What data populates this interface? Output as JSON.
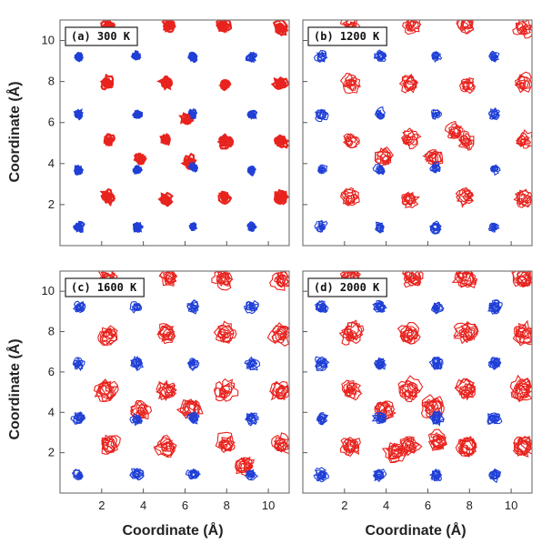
{
  "figure": {
    "ylabel": "Coordinate (Å)",
    "xlabel": "Coordinate (Å)"
  },
  "chart_data": [
    {
      "type": "scatter",
      "panel_label": "(a) 300 K",
      "temperature_K": 300,
      "xlim": [
        0,
        11
      ],
      "ylim": [
        0,
        11
      ],
      "xticks": [
        2,
        4,
        6,
        8,
        10
      ],
      "yticks": [
        2,
        4,
        6,
        8,
        10
      ],
      "show_x_tick_labels": false,
      "show_y_tick_labels": true,
      "spread": 0.12,
      "colors": {
        "red_species": "#e8231e",
        "blue_species": "#1f3fd6"
      },
      "series": [
        {
          "color_key": "red_species",
          "points": [
            [
              2.3,
              10.7
            ],
            [
              5.2,
              10.7
            ],
            [
              7.8,
              10.7
            ],
            [
              10.6,
              10.6
            ],
            [
              2.3,
              7.9
            ],
            [
              5.1,
              7.9
            ],
            [
              7.9,
              7.9
            ],
            [
              10.6,
              7.9
            ],
            [
              2.3,
              5.1
            ],
            [
              5.1,
              5.2
            ],
            [
              7.9,
              5.1
            ],
            [
              10.6,
              5.1
            ],
            [
              3.9,
              4.2
            ],
            [
              6.2,
              4.1
            ],
            [
              6.1,
              6.1
            ],
            [
              2.3,
              2.4
            ],
            [
              5.1,
              2.2
            ],
            [
              7.9,
              2.4
            ],
            [
              10.6,
              2.4
            ]
          ]
        },
        {
          "color_key": "blue_species",
          "points": [
            [
              0.9,
              9.2
            ],
            [
              3.7,
              9.2
            ],
            [
              6.4,
              9.2
            ],
            [
              9.2,
              9.2
            ],
            [
              0.9,
              6.4
            ],
            [
              3.7,
              6.4
            ],
            [
              6.4,
              6.4
            ],
            [
              9.2,
              6.4
            ],
            [
              0.9,
              3.7
            ],
            [
              3.7,
              3.7
            ],
            [
              6.4,
              3.8
            ],
            [
              9.2,
              3.7
            ],
            [
              0.9,
              0.9
            ],
            [
              3.7,
              0.9
            ],
            [
              6.4,
              0.9
            ],
            [
              9.2,
              0.9
            ]
          ]
        }
      ]
    },
    {
      "type": "scatter",
      "panel_label": "(b) 1200 K",
      "temperature_K": 1200,
      "xlim": [
        0,
        11
      ],
      "ylim": [
        0,
        11
      ],
      "xticks": [
        2,
        4,
        6,
        8,
        10
      ],
      "yticks": [
        2,
        4,
        6,
        8,
        10
      ],
      "show_x_tick_labels": false,
      "show_y_tick_labels": false,
      "spread": 0.3,
      "colors": {
        "red_species": "#e8231e",
        "blue_species": "#1f3fd6"
      },
      "series": [
        {
          "color_key": "red_species",
          "points": [
            [
              2.3,
              10.7
            ],
            [
              5.2,
              10.7
            ],
            [
              7.8,
              10.7
            ],
            [
              10.6,
              10.6
            ],
            [
              2.3,
              7.9
            ],
            [
              5.1,
              7.9
            ],
            [
              7.9,
              7.9
            ],
            [
              10.6,
              7.9
            ],
            [
              2.3,
              5.1
            ],
            [
              5.1,
              5.2
            ],
            [
              7.9,
              5.1
            ],
            [
              10.6,
              5.1
            ],
            [
              3.9,
              4.3
            ],
            [
              6.3,
              4.3
            ],
            [
              7.3,
              5.5
            ],
            [
              2.3,
              2.4
            ],
            [
              5.1,
              2.3
            ],
            [
              7.9,
              2.4
            ],
            [
              10.6,
              2.3
            ]
          ]
        },
        {
          "color_key": "blue_species",
          "points": [
            [
              0.9,
              9.2
            ],
            [
              3.7,
              9.2
            ],
            [
              6.4,
              9.2
            ],
            [
              9.2,
              9.2
            ],
            [
              0.9,
              6.4
            ],
            [
              3.7,
              6.4
            ],
            [
              6.4,
              6.4
            ],
            [
              9.2,
              6.4
            ],
            [
              0.9,
              3.7
            ],
            [
              3.7,
              3.7
            ],
            [
              6.4,
              3.8
            ],
            [
              9.2,
              3.7
            ],
            [
              0.9,
              0.9
            ],
            [
              3.7,
              0.9
            ],
            [
              6.4,
              0.9
            ],
            [
              9.2,
              0.9
            ]
          ]
        }
      ]
    },
    {
      "type": "scatter",
      "panel_label": "(c) 1600 K",
      "temperature_K": 1600,
      "xlim": [
        0,
        11
      ],
      "ylim": [
        0,
        11
      ],
      "xticks": [
        2,
        4,
        6,
        8,
        10
      ],
      "yticks": [
        2,
        4,
        6,
        8,
        10
      ],
      "show_x_tick_labels": true,
      "show_y_tick_labels": true,
      "spread": 0.38,
      "colors": {
        "red_species": "#e8231e",
        "blue_species": "#1f3fd6"
      },
      "series": [
        {
          "color_key": "red_species",
          "points": [
            [
              2.3,
              10.7
            ],
            [
              5.2,
              10.7
            ],
            [
              7.8,
              10.7
            ],
            [
              10.6,
              10.6
            ],
            [
              2.3,
              7.9
            ],
            [
              5.1,
              7.9
            ],
            [
              7.9,
              7.9
            ],
            [
              10.6,
              7.9
            ],
            [
              2.3,
              5.1
            ],
            [
              5.1,
              5.1
            ],
            [
              7.9,
              5.1
            ],
            [
              10.6,
              5.1
            ],
            [
              3.9,
              4.0
            ],
            [
              6.3,
              4.2
            ],
            [
              2.3,
              2.4
            ],
            [
              5.1,
              2.3
            ],
            [
              7.9,
              2.4
            ],
            [
              10.6,
              2.4
            ],
            [
              8.9,
              1.4
            ]
          ]
        },
        {
          "color_key": "blue_species",
          "points": [
            [
              0.9,
              9.2
            ],
            [
              3.7,
              9.2
            ],
            [
              6.4,
              9.2
            ],
            [
              9.2,
              9.2
            ],
            [
              0.9,
              6.4
            ],
            [
              3.7,
              6.4
            ],
            [
              6.4,
              6.4
            ],
            [
              9.2,
              6.4
            ],
            [
              0.9,
              3.7
            ],
            [
              3.7,
              3.7
            ],
            [
              6.4,
              3.7
            ],
            [
              9.2,
              3.7
            ],
            [
              0.9,
              0.9
            ],
            [
              3.7,
              0.9
            ],
            [
              6.4,
              0.9
            ],
            [
              9.2,
              0.9
            ]
          ]
        }
      ]
    },
    {
      "type": "scatter",
      "panel_label": "(d) 2000 K",
      "temperature_K": 2000,
      "xlim": [
        0,
        11
      ],
      "ylim": [
        0,
        11
      ],
      "xticks": [
        2,
        4,
        6,
        8,
        10
      ],
      "yticks": [
        2,
        4,
        6,
        8,
        10
      ],
      "show_x_tick_labels": true,
      "show_y_tick_labels": false,
      "spread": 0.42,
      "colors": {
        "red_species": "#e8231e",
        "blue_species": "#1f3fd6"
      },
      "series": [
        {
          "color_key": "red_species",
          "points": [
            [
              2.3,
              10.7
            ],
            [
              5.2,
              10.7
            ],
            [
              7.8,
              10.7
            ],
            [
              10.6,
              10.6
            ],
            [
              2.3,
              7.9
            ],
            [
              5.1,
              7.9
            ],
            [
              7.9,
              7.9
            ],
            [
              10.6,
              7.9
            ],
            [
              2.3,
              5.1
            ],
            [
              5.1,
              5.1
            ],
            [
              7.9,
              5.1
            ],
            [
              10.6,
              5.1
            ],
            [
              3.9,
              4.1
            ],
            [
              6.2,
              4.2
            ],
            [
              2.3,
              2.3
            ],
            [
              5.1,
              2.3
            ],
            [
              7.9,
              2.3
            ],
            [
              10.6,
              2.3
            ],
            [
              4.4,
              2.0
            ],
            [
              6.5,
              2.6
            ]
          ]
        },
        {
          "color_key": "blue_species",
          "points": [
            [
              0.9,
              9.2
            ],
            [
              3.7,
              9.2
            ],
            [
              6.4,
              9.2
            ],
            [
              9.2,
              9.2
            ],
            [
              0.9,
              6.4
            ],
            [
              3.7,
              6.4
            ],
            [
              6.4,
              6.4
            ],
            [
              9.2,
              6.4
            ],
            [
              0.9,
              3.7
            ],
            [
              3.7,
              3.7
            ],
            [
              6.4,
              3.7
            ],
            [
              9.2,
              3.7
            ],
            [
              0.9,
              0.9
            ],
            [
              3.7,
              0.9
            ],
            [
              6.4,
              0.9
            ],
            [
              9.2,
              0.9
            ]
          ]
        }
      ]
    }
  ]
}
